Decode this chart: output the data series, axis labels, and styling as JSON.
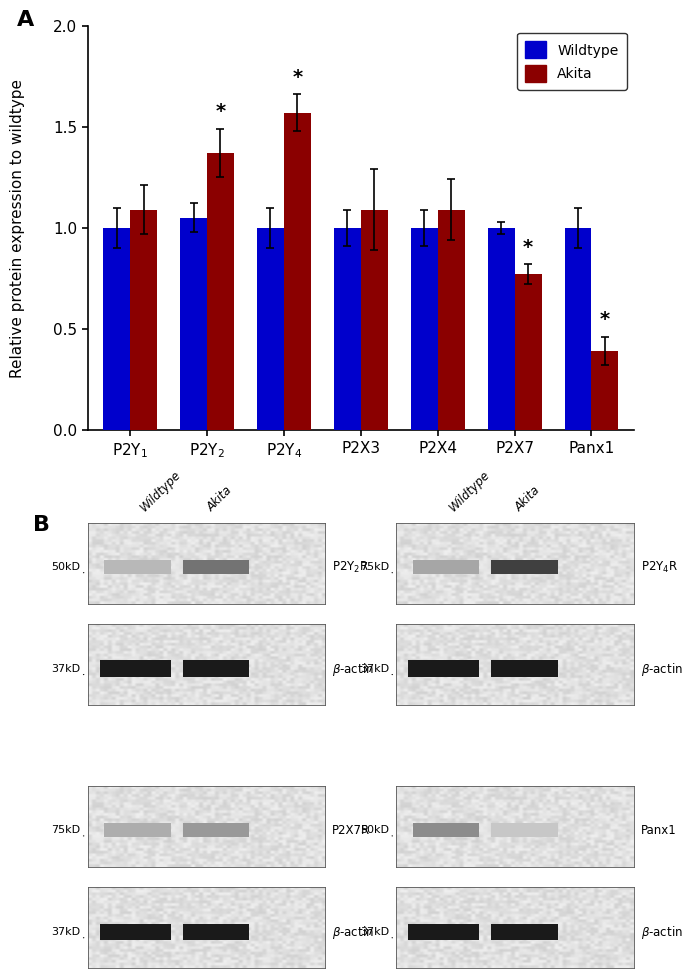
{
  "wildtype_values": [
    1.0,
    1.05,
    1.0,
    1.0,
    1.0,
    1.0,
    1.0
  ],
  "akita_values": [
    1.09,
    1.37,
    1.57,
    1.09,
    1.09,
    0.77,
    0.39
  ],
  "wildtype_errors": [
    0.1,
    0.07,
    0.1,
    0.09,
    0.09,
    0.03,
    0.1
  ],
  "akita_errors": [
    0.12,
    0.12,
    0.09,
    0.2,
    0.15,
    0.05,
    0.07
  ],
  "significant_akita": [
    false,
    true,
    true,
    false,
    false,
    true,
    true
  ],
  "bar_color_wildtype": "#0000CC",
  "bar_color_akita": "#8B0000",
  "ylabel": "Relative protein expression to wildtype",
  "ylim": [
    0.0,
    2.0
  ],
  "yticks": [
    0.0,
    0.5,
    1.0,
    1.5,
    2.0
  ],
  "legend_wildtype": "Wildtype",
  "legend_akita": "Akita",
  "bar_width": 0.35,
  "figure_bg": "#ffffff",
  "wb_configs": [
    {
      "label": "P2Y$_2$R",
      "mw_band": "50kD",
      "mw_actin": "37kD",
      "row": 0,
      "col": 0,
      "wt_dark": 0.72,
      "ak_dark": 0.45,
      "wt_wide": 2.6,
      "ak_wide": 2.4
    },
    {
      "label": "P2Y$_4$R",
      "mw_band": "75kD",
      "mw_actin": "37kD",
      "row": 0,
      "col": 1,
      "wt_dark": 0.65,
      "ak_dark": 0.25,
      "wt_wide": 2.6,
      "ak_wide": 2.5
    },
    {
      "label": "P2X7R",
      "mw_band": "75kD",
      "mw_actin": "37kD",
      "row": 1,
      "col": 0,
      "wt_dark": 0.68,
      "ak_dark": 0.6,
      "wt_wide": 2.6,
      "ak_wide": 2.5
    },
    {
      "label": "Panx1",
      "mw_band": "50kD",
      "mw_actin": "37kD",
      "row": 1,
      "col": 1,
      "wt_dark": 0.55,
      "ak_dark": 0.78,
      "wt_wide": 2.6,
      "ak_wide": 2.4
    }
  ]
}
